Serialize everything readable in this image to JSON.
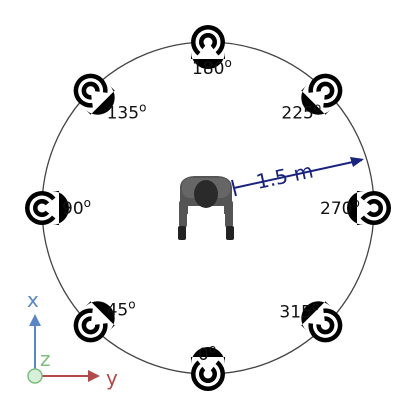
{
  "speakers": [
    {
      "label": "180",
      "deg": "o",
      "angle": 180
    },
    {
      "label": "225",
      "deg": "o",
      "angle": 225
    },
    {
      "label": "270",
      "deg": "o",
      "angle": 270
    },
    {
      "label": "315",
      "deg": "o",
      "angle": 315
    },
    {
      "label": "0",
      "deg": "o",
      "angle": 0
    },
    {
      "label": "45",
      "deg": "o",
      "angle": 45
    },
    {
      "label": "90",
      "deg": "o",
      "angle": 90
    },
    {
      "label": "135",
      "deg": "o",
      "angle": 135
    }
  ],
  "distance": {
    "label": "1.5 m"
  },
  "axes": {
    "x": "x",
    "y": "y",
    "z": "z"
  },
  "colors": {
    "circle": "#444444",
    "speaker": "#000000",
    "distance": "#1a237e",
    "x_axis": "#5b86c5",
    "y_axis": "#b34a4a",
    "z_axis": "#7cbf7c"
  }
}
